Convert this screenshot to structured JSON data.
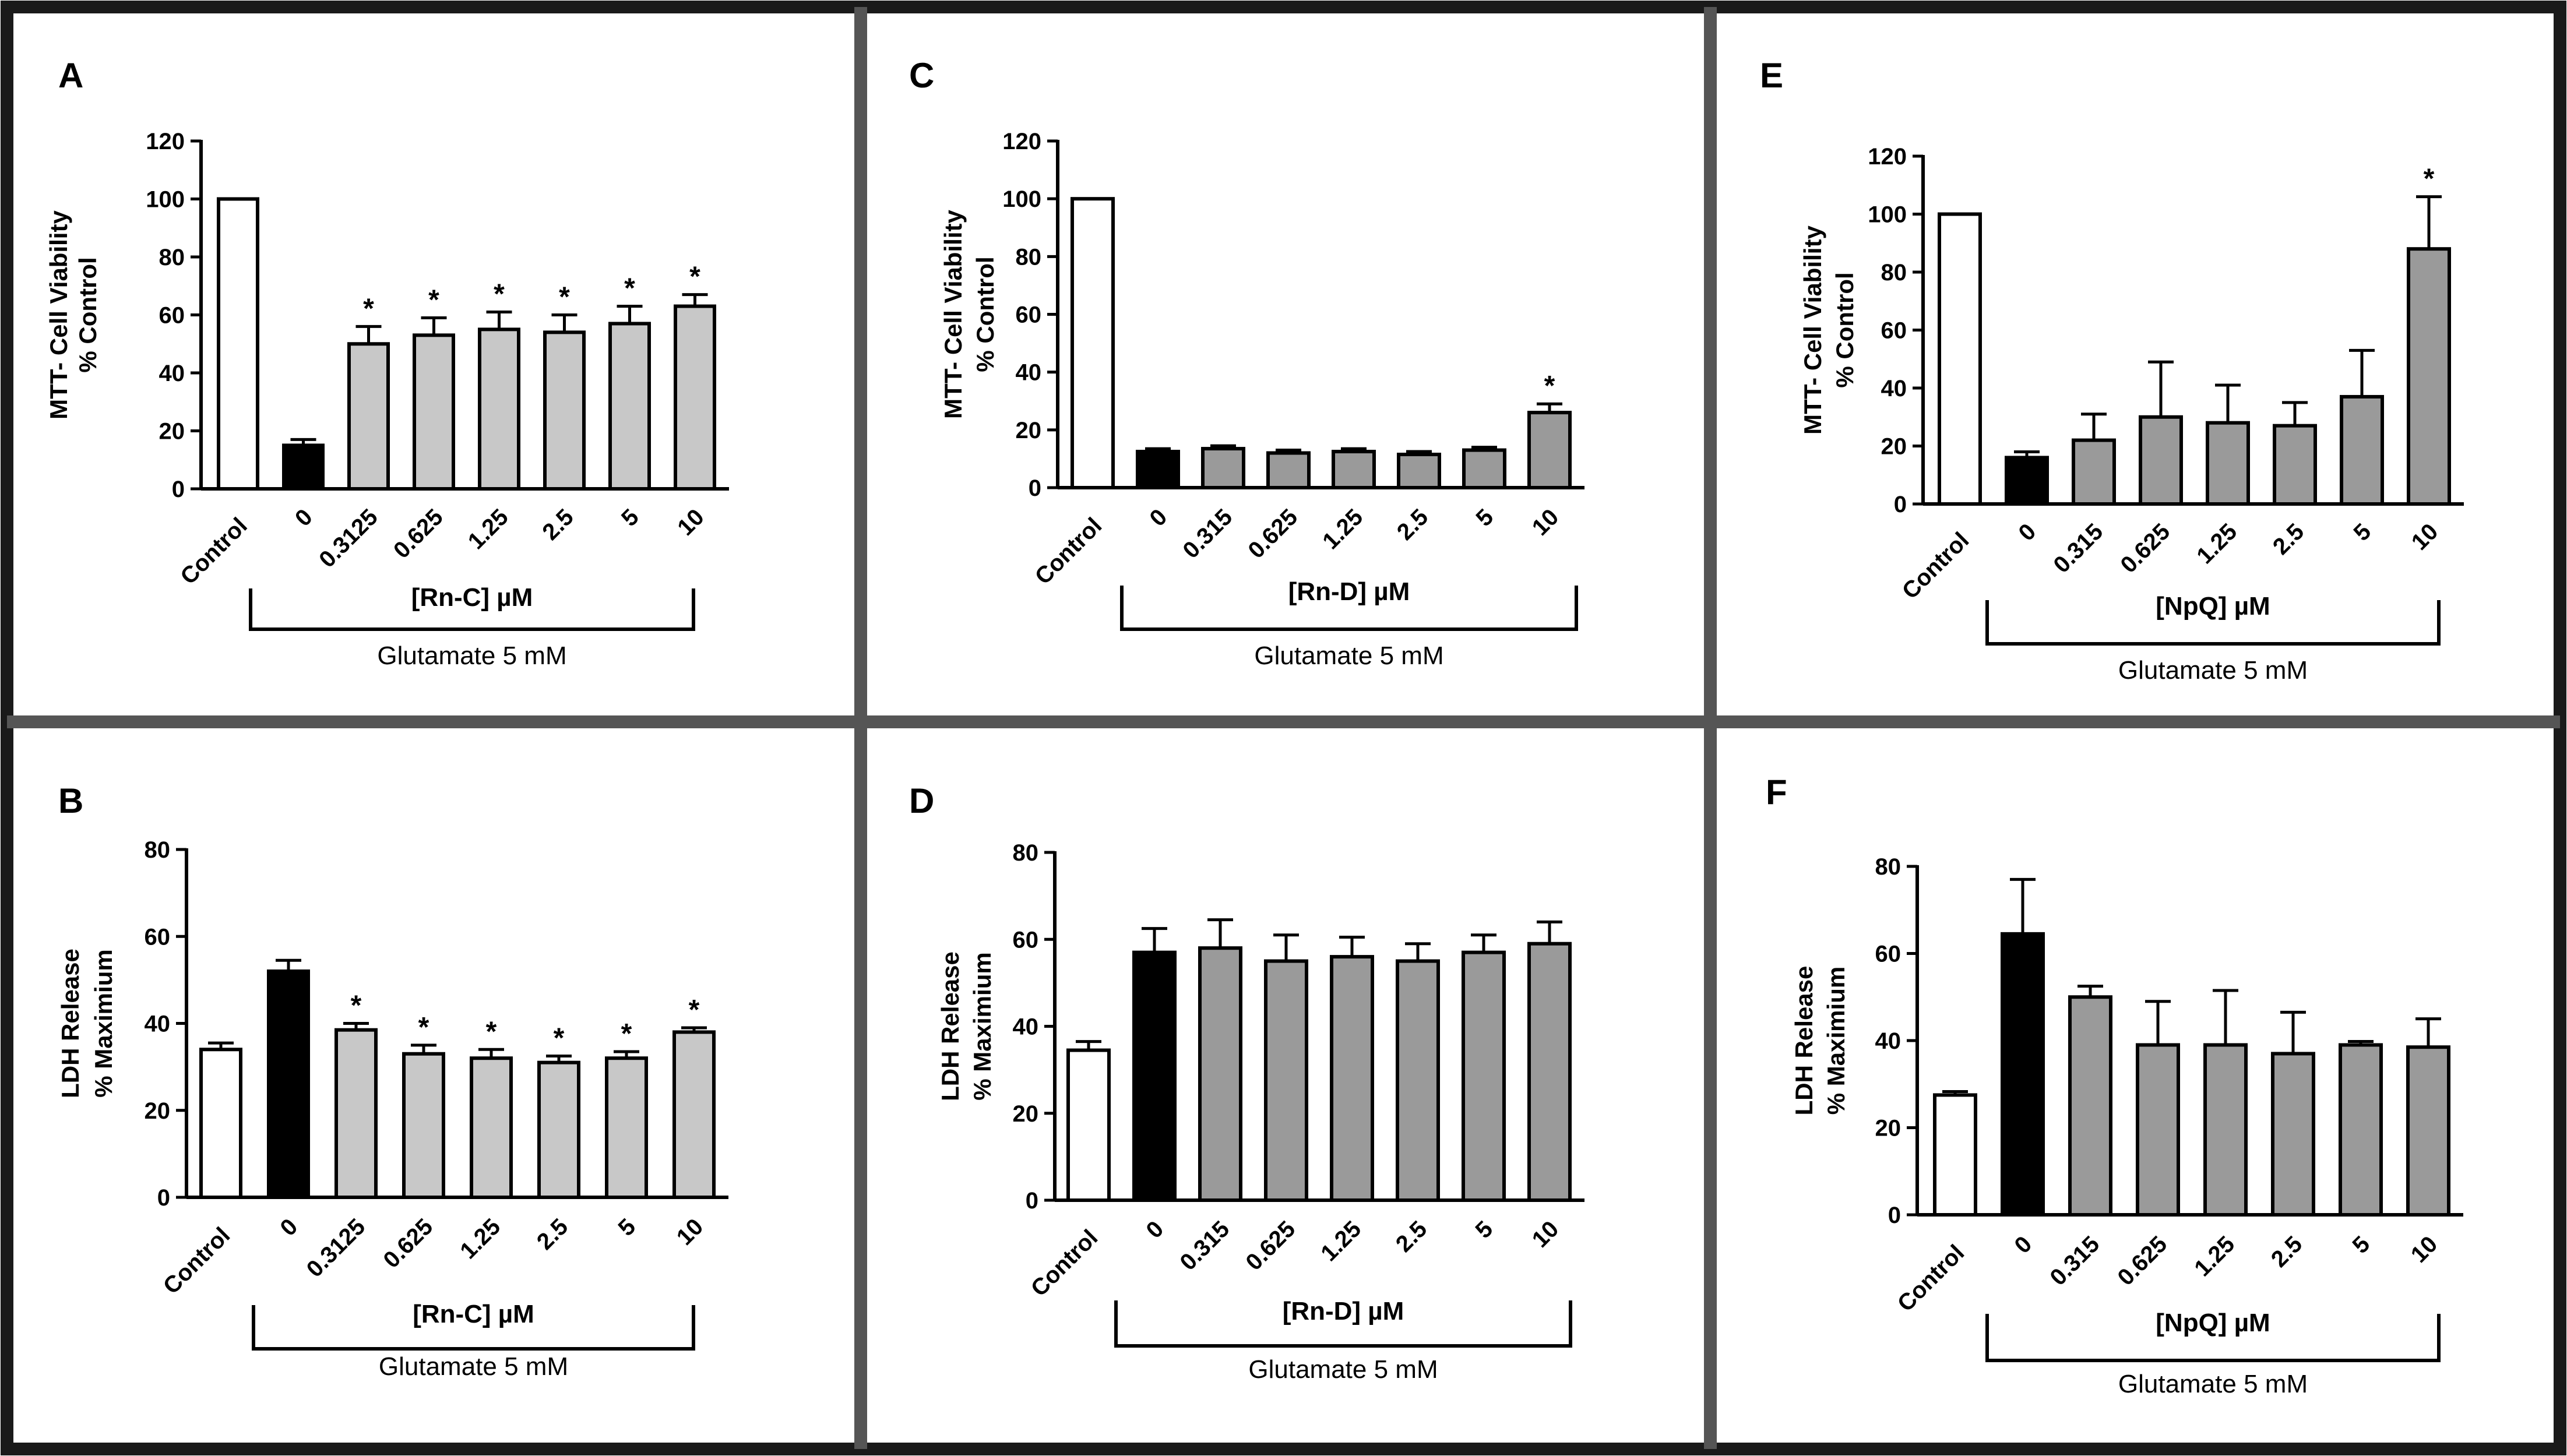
{
  "colors": {
    "control": "#ffffff",
    "zero": "#000000",
    "treated_light": "#c8c8c8",
    "treated_dark": "#9a9a9a",
    "border": "#555555",
    "frame": "#1a1a1a"
  },
  "bracket_label": "Glutamate 5 mM",
  "chart_data": [
    {
      "panel": "A",
      "type": "bar",
      "ylabel_line1": "MTT- Cell Viability",
      "ylabel_line2": "% Control",
      "xlabel": "[Rn-C] µM",
      "categories": [
        "Control",
        "0",
        "0.3125",
        "0.625",
        "1.25",
        "2.5",
        "5",
        "10"
      ],
      "values": [
        100,
        15,
        50,
        53,
        55,
        54,
        57,
        63
      ],
      "errors": [
        0,
        2,
        6,
        6,
        6,
        6,
        6,
        4
      ],
      "significant": [
        false,
        false,
        true,
        true,
        true,
        true,
        true,
        true
      ],
      "ylim": [
        0,
        120
      ],
      "yticks": [
        "0",
        "20",
        "40",
        "60",
        "80",
        "100",
        "120"
      ],
      "treated_shade": "light"
    },
    {
      "panel": "B",
      "type": "bar",
      "ylabel_line1": "LDH Release",
      "ylabel_line2": "% Maximium",
      "xlabel": "[Rn-C] µM",
      "categories": [
        "Control",
        "0",
        "0.3125",
        "0.625",
        "1.25",
        "2.5",
        "5",
        "10"
      ],
      "values": [
        34,
        52,
        38.5,
        33,
        32,
        31,
        32,
        38
      ],
      "errors": [
        1.5,
        2.5,
        1.5,
        2,
        2,
        1.5,
        1.5,
        1
      ],
      "significant": [
        false,
        false,
        true,
        true,
        true,
        true,
        true,
        true
      ],
      "ylim": [
        0,
        80
      ],
      "yticks": [
        "0",
        "20",
        "40",
        "60",
        "80"
      ],
      "treated_shade": "light"
    },
    {
      "panel": "C",
      "type": "bar",
      "ylabel_line1": "MTT- Cell Viability",
      "ylabel_line2": "% Control",
      "xlabel": "[Rn-D] µM",
      "categories": [
        "Control",
        "0",
        "0.315",
        "0.625",
        "1.25",
        "2.5",
        "5",
        "10"
      ],
      "values": [
        100,
        12.5,
        13.5,
        12,
        12.5,
        11.5,
        13,
        26
      ],
      "errors": [
        0,
        1,
        1,
        1,
        1,
        1,
        1,
        3
      ],
      "significant": [
        false,
        false,
        false,
        false,
        false,
        false,
        false,
        true
      ],
      "ylim": [
        0,
        120
      ],
      "yticks": [
        "0",
        "20",
        "40",
        "60",
        "80",
        "100",
        "120"
      ],
      "treated_shade": "dark"
    },
    {
      "panel": "D",
      "type": "bar",
      "ylabel_line1": "LDH Release",
      "ylabel_line2": "% Maximium",
      "xlabel": "[Rn-D] µM",
      "categories": [
        "Control",
        "0",
        "0.315",
        "0.625",
        "1.25",
        "2.5",
        "5",
        "10"
      ],
      "values": [
        34.5,
        57,
        58,
        55,
        56,
        55,
        57,
        59
      ],
      "errors": [
        2,
        5.5,
        6.5,
        6,
        4.5,
        4,
        4,
        5
      ],
      "significant": [
        false,
        false,
        false,
        false,
        false,
        false,
        false,
        false
      ],
      "ylim": [
        0,
        80
      ],
      "yticks": [
        "0",
        "20",
        "40",
        "60",
        "80"
      ],
      "treated_shade": "dark"
    },
    {
      "panel": "E",
      "type": "bar",
      "ylabel_line1": "MTT- Cell Viability",
      "ylabel_line2": "% Control",
      "xlabel": "[NpQ] µM",
      "categories": [
        "Control",
        "0",
        "0.315",
        "0.625",
        "1.25",
        "2.5",
        "5",
        "10"
      ],
      "values": [
        100,
        16,
        22,
        30,
        28,
        27,
        37,
        88
      ],
      "errors": [
        0,
        2,
        9,
        19,
        13,
        8,
        16,
        18
      ],
      "significant": [
        false,
        false,
        false,
        false,
        false,
        false,
        false,
        true
      ],
      "ylim": [
        0,
        120
      ],
      "yticks": [
        "0",
        "20",
        "40",
        "60",
        "80",
        "100",
        "120"
      ],
      "treated_shade": "dark"
    },
    {
      "panel": "F",
      "type": "bar",
      "ylabel_line1": "LDH Release",
      "ylabel_line2": "% Maximium",
      "xlabel": "[NpQ] µM",
      "categories": [
        "Control",
        "0",
        "0.315",
        "0.625",
        "1.25",
        "2.5",
        "5",
        "10"
      ],
      "values": [
        27.5,
        64.5,
        50,
        39,
        39,
        37,
        39,
        38.5
      ],
      "errors": [
        0.8,
        12.5,
        2.5,
        10,
        12.5,
        9.5,
        0.8,
        6.5
      ],
      "significant": [
        false,
        false,
        false,
        false,
        false,
        false,
        false,
        false
      ],
      "ylim": [
        0,
        80
      ],
      "yticks": [
        "0",
        "20",
        "40",
        "60",
        "80"
      ],
      "treated_shade": "dark"
    }
  ]
}
